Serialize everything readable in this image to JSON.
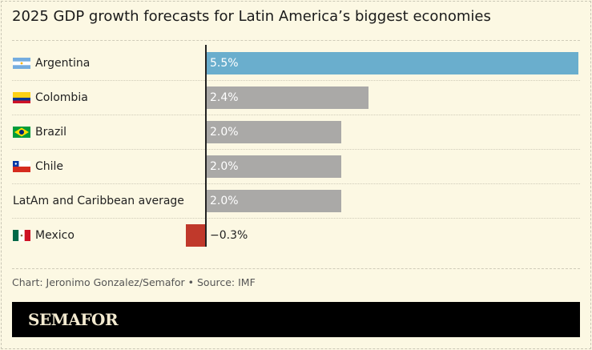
{
  "chart_data": {
    "type": "bar",
    "orientation": "horizontal",
    "title": "2025 GDP growth forecasts for Latin America’s biggest economies",
    "categories": [
      "Argentina",
      "Colombia",
      "Brazil",
      "Chile",
      "LatAm and Caribbean average",
      "Mexico"
    ],
    "values": [
      5.5,
      2.4,
      2.0,
      2.0,
      2.0,
      -0.3
    ],
    "value_labels": [
      "5.5%",
      "2.4%",
      "2.0%",
      "2.0%",
      "2.0%",
      "−0.3%"
    ],
    "flags": [
      "argentina-flag",
      "colombia-flag",
      "brazil-flag",
      "chile-flag",
      "",
      "mexico-flag"
    ],
    "bar_colors": [
      "#6aaecd",
      "#aaa9a7",
      "#aaa9a7",
      "#aaa9a7",
      "#aaa9a7",
      "#c0392b"
    ],
    "xlim": [
      -0.3,
      5.5
    ],
    "grid": false,
    "legend": "none"
  },
  "footer": {
    "credit": "Chart: Jeronimo Gonzalez/Semafor • Source: IMF",
    "logo": "SEMAFOR"
  }
}
